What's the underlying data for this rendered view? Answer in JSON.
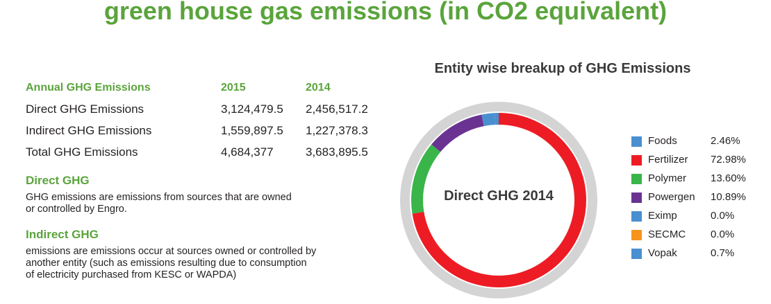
{
  "page": {
    "title": "green house gas emissions (in CO2 equivalent)"
  },
  "table": {
    "headers": [
      "Annual GHG Emissions",
      "2015",
      "2014"
    ],
    "rows": [
      [
        "Direct GHG Emissions",
        "3,124,479.5",
        "2,456,517.2"
      ],
      [
        "Indirect GHG Emissions",
        "1,559,897.5",
        "1,227,378.3"
      ],
      [
        "Total GHG Emissions",
        "4,684,377",
        "3,683,895.5"
      ]
    ]
  },
  "direct": {
    "heading": "Direct GHG",
    "lines": [
      "GHG emissions are emissions from sources that are owned",
      "or controlled by Engro."
    ]
  },
  "indirect": {
    "heading": "Indirect GHG",
    "lines": [
      "emissions are emissions occur at sources owned or controlled by",
      "another entity (such as emissions resulting due to consumption",
      "of electricity purchased from KESC or WAPDA)"
    ]
  },
  "chart_data": {
    "type": "pie",
    "donut": true,
    "title": "Entity wise breakup of GHG Emissions",
    "center_label": "Direct GHG 2014",
    "legend_position": "right",
    "unit": "%",
    "categories": [
      "Foods",
      "Fertilizer",
      "Polymer",
      "Powergen",
      "Eximp",
      "SECMC",
      "Vopak"
    ],
    "values": [
      2.46,
      72.98,
      13.6,
      10.89,
      0.0,
      0.0,
      0.7
    ],
    "labels": [
      "2.46%",
      "72.98%",
      "13.60%",
      "10.89%",
      "0.0%",
      "0.0%",
      "0.7%"
    ],
    "colors": [
      "#4a8fd0",
      "#ed1c24",
      "#39b54a",
      "#6a3392",
      "#4a8fd0",
      "#f7941d",
      "#4a8fd0"
    ],
    "ring_color": "#d4d4d4"
  }
}
